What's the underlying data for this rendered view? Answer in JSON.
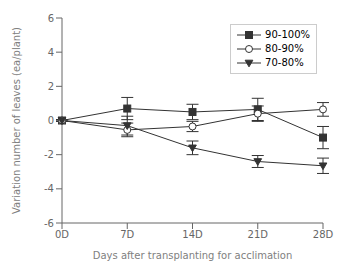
{
  "chart_data": {
    "type": "line",
    "categories": [
      "0D",
      "7D",
      "14D",
      "21D",
      "28D"
    ],
    "series": [
      {
        "name": "90-100%",
        "color": "#333333",
        "marker": "square",
        "values": [
          0.0,
          0.7,
          0.5,
          0.65,
          -1.0
        ],
        "yerr": [
          0.05,
          0.65,
          0.45,
          0.65,
          0.65
        ]
      },
      {
        "name": "80-90%",
        "color": "#333333",
        "marker": "circle_open",
        "values": [
          0.0,
          -0.55,
          -0.35,
          0.4,
          0.65
        ],
        "yerr": [
          0.05,
          0.4,
          0.3,
          0.45,
          0.4
        ]
      },
      {
        "name": "70-80%",
        "color": "#333333",
        "marker": "triangle_down",
        "values": [
          0.0,
          -0.3,
          -1.6,
          -2.4,
          -2.65
        ],
        "yerr": [
          0.05,
          0.55,
          0.4,
          0.35,
          0.45
        ]
      }
    ],
    "xlabel": "Days after transplanting for acclimation",
    "ylabel": "Variation number of leaves (ea/plant)",
    "ylim": [
      -6,
      6
    ],
    "yticks": [
      -6,
      -4,
      -2,
      0,
      2,
      4,
      6
    ],
    "grid": false,
    "legend": "upper right"
  }
}
